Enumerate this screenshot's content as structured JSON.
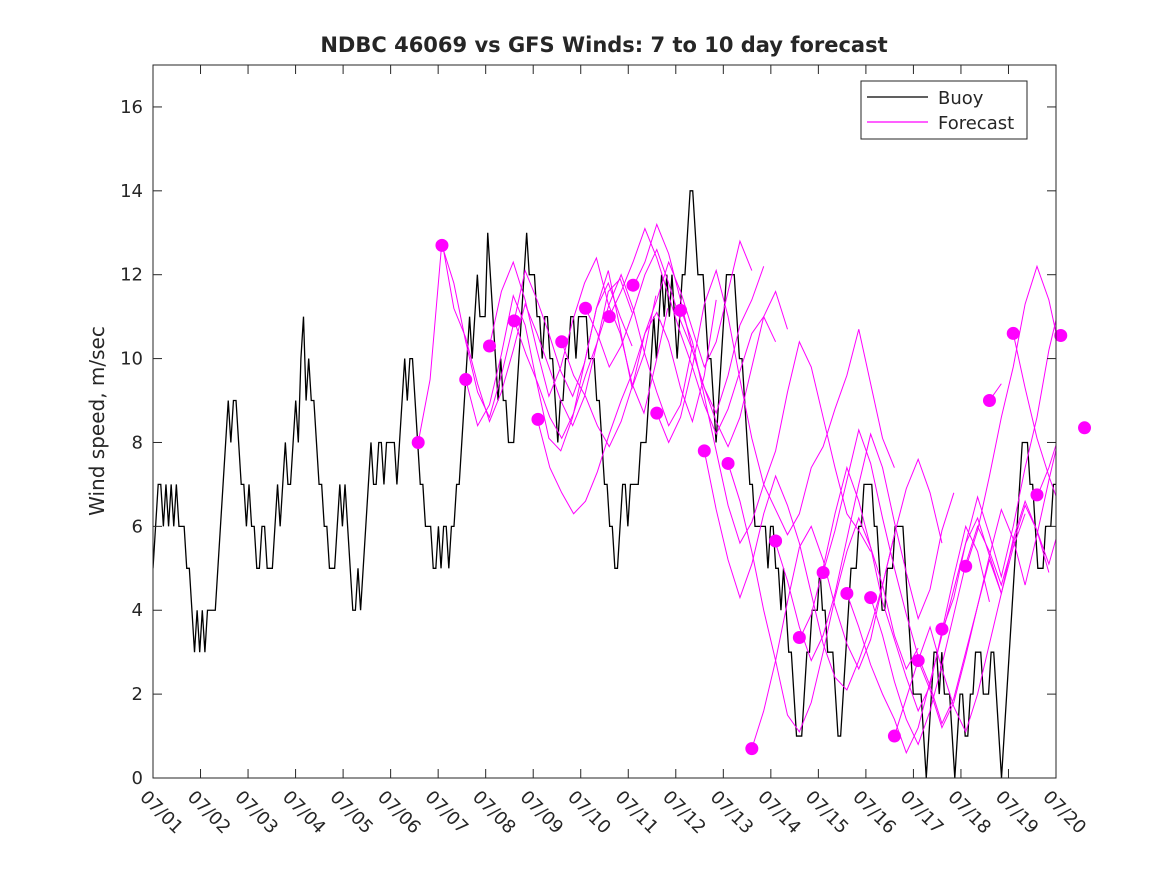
{
  "chart_data": {
    "type": "line",
    "title": "NDBC 46069 vs GFS Winds: 7 to 10 day forecast",
    "xlabel": "",
    "ylabel": "Wind speed, m/sec",
    "xlim": [
      0,
      19
    ],
    "ylim": [
      0,
      17
    ],
    "x_ticks": [
      0,
      1,
      2,
      3,
      4,
      5,
      6,
      7,
      8,
      9,
      10,
      11,
      12,
      13,
      14,
      15,
      16,
      17,
      18,
      19
    ],
    "x_tick_labels": [
      "07/01",
      "07/02",
      "07/03",
      "07/04",
      "07/05",
      "07/06",
      "07/07",
      "07/08",
      "07/09",
      "07/10",
      "07/11",
      "07/12",
      "07/13",
      "07/14",
      "07/15",
      "07/16",
      "07/17",
      "07/18",
      "07/19",
      "07/20"
    ],
    "y_ticks": [
      0,
      2,
      4,
      6,
      8,
      10,
      12,
      14,
      16
    ],
    "y_tick_labels": [
      "0",
      "2",
      "4",
      "6",
      "8",
      "10",
      "12",
      "14",
      "16"
    ],
    "grid": false,
    "legend": {
      "placement": "top-right",
      "entries": [
        {
          "label": "Buoy",
          "color": "#000000"
        },
        {
          "label": "Forecast",
          "color": "#ff00ff"
        }
      ]
    },
    "buoy_series": {
      "name": "Buoy",
      "color": "#000000",
      "values_hourly": [
        5,
        6,
        7,
        7,
        6,
        7,
        6,
        7,
        6,
        7,
        6,
        6,
        6,
        5,
        5,
        4,
        3,
        4,
        3,
        4,
        3,
        4,
        4,
        4,
        4,
        5,
        6,
        7,
        8,
        9,
        8,
        9,
        9,
        8,
        7,
        7,
        6,
        7,
        6,
        6,
        5,
        5,
        6,
        6,
        5,
        5,
        5,
        6,
        7,
        6,
        7,
        8,
        7,
        7,
        8,
        9,
        8,
        10,
        11,
        9,
        10,
        9,
        9,
        8,
        7,
        7,
        6,
        6,
        5,
        5,
        5,
        6,
        7,
        6,
        7,
        6,
        5,
        4,
        4,
        5,
        4,
        5,
        6,
        7,
        8,
        7,
        7,
        8,
        8,
        7,
        8,
        8,
        8,
        8,
        7,
        8,
        9,
        10,
        9,
        10,
        10,
        9,
        8,
        7,
        7,
        6,
        6,
        6,
        5,
        5,
        6,
        5,
        6,
        6,
        5,
        6,
        6,
        7,
        7,
        8,
        9,
        10,
        11,
        10,
        11,
        12,
        11,
        11,
        11,
        13,
        12,
        11,
        10,
        9,
        10,
        9,
        9,
        8,
        8,
        8,
        9,
        10,
        11,
        12,
        13,
        12,
        12,
        12,
        11,
        11,
        10,
        11,
        11,
        10,
        10,
        9,
        8,
        9,
        9,
        10,
        10,
        11,
        11,
        10,
        11,
        11,
        11,
        11,
        10,
        10,
        10,
        9,
        9,
        8,
        7,
        7,
        6,
        6,
        5,
        5,
        6,
        7,
        7,
        6,
        7,
        7,
        7,
        7,
        8,
        8,
        8,
        9,
        10,
        11,
        10,
        11,
        12,
        11,
        12,
        11,
        12,
        11,
        10,
        11,
        12,
        12,
        13,
        14,
        14,
        13,
        12,
        12,
        12,
        11,
        10,
        10,
        9,
        8,
        9,
        10,
        11,
        12,
        12,
        12,
        12,
        11,
        10,
        10,
        9,
        8,
        7,
        7,
        6,
        6,
        6,
        6,
        6,
        5,
        6,
        6,
        5,
        5,
        4,
        5,
        4,
        3,
        3,
        2,
        1,
        1,
        1,
        2,
        3,
        3,
        4,
        4,
        4,
        5,
        4,
        4,
        3,
        3,
        3,
        2,
        1,
        1,
        2,
        3,
        4,
        5,
        5,
        5,
        6,
        6,
        7,
        7,
        7,
        7,
        6,
        6,
        5,
        4,
        4,
        5,
        5,
        5,
        6,
        6,
        6,
        6,
        5,
        4,
        3,
        2,
        2,
        2,
        2,
        1,
        0,
        1,
        2,
        3,
        3,
        2,
        3,
        2,
        2,
        2,
        1,
        0,
        1,
        2,
        2,
        1,
        1,
        2,
        2,
        3,
        3,
        3,
        2,
        2,
        2,
        3,
        3,
        2,
        1,
        0,
        1,
        2,
        3,
        4,
        5,
        6,
        7,
        8,
        8,
        8,
        7,
        7,
        6,
        5,
        5,
        5,
        6,
        6,
        6,
        7,
        7
      ]
    },
    "forecast_runs": [
      {
        "start": 5.58,
        "step": 0.25,
        "values": [
          8.0,
          9.5,
          12.8,
          11.2,
          10.5,
          9.4,
          8.5,
          9.2,
          10.2,
          11.3,
          10.6,
          9.8,
          9.0,
          8.4,
          9.1,
          10.3,
          11.6,
          11.9,
          11.1
        ]
      },
      {
        "start": 6.08,
        "step": 0.25,
        "values": [
          12.7,
          11.8,
          10.4,
          9.2,
          8.6,
          9.6,
          10.8,
          12.1,
          11.4,
          10.6,
          9.7,
          9.1,
          9.9,
          11.2,
          11.8,
          11.0,
          10.3
        ]
      },
      {
        "start": 6.58,
        "step": 0.25,
        "values": [
          9.5,
          8.4,
          8.9,
          10.1,
          11.5,
          10.8,
          9.4,
          8.1,
          7.8,
          8.6,
          9.9,
          11.2,
          12.1,
          10.7,
          9.3,
          10.1,
          11.5
        ]
      },
      {
        "start": 7.08,
        "step": 0.25,
        "values": [
          10.3,
          11.6,
          12.3,
          11.4,
          10.2,
          9.1,
          9.8,
          10.9,
          11.8,
          12.4,
          11.3,
          10.6,
          9.4,
          8.7,
          9.9,
          11.2
        ]
      },
      {
        "start": 7.6,
        "step": 0.25,
        "values": [
          10.9,
          10.1,
          9.4,
          8.6,
          8.1,
          8.7,
          9.6,
          10.4,
          11.3,
          12.0,
          11.2,
          10.1,
          9.2,
          8.4,
          8.9,
          10.3
        ]
      },
      {
        "start": 8.1,
        "step": 0.25,
        "values": [
          8.5,
          7.4,
          6.8,
          6.3,
          6.6,
          7.3,
          8.2,
          9.0,
          9.7,
          10.6,
          11.1,
          10.4,
          9.3,
          8.5,
          9.6,
          11.4
        ]
      },
      {
        "start": 8.6,
        "step": 0.25,
        "values": [
          10.4,
          9.6,
          9.1,
          8.4,
          7.9,
          8.5,
          9.4,
          10.6,
          11.4,
          12.3,
          11.6,
          10.7,
          9.8,
          10.4,
          11.6,
          12.8,
          12.1
        ]
      },
      {
        "start": 9.1,
        "step": 0.25,
        "values": [
          11.2,
          10.6,
          9.8,
          10.3,
          11.1,
          12.0,
          12.6,
          11.8,
          10.9,
          10.2,
          9.3,
          8.7,
          9.6,
          10.8,
          11.4,
          12.2
        ]
      },
      {
        "start": 9.6,
        "step": 0.25,
        "values": [
          11.0,
          11.6,
          12.3,
          13.1,
          12.4,
          11.5,
          10.6,
          9.8,
          8.9,
          8.2,
          8.8,
          9.7,
          10.6,
          11.0,
          10.4
        ]
      },
      {
        "start": 10.1,
        "step": 0.25,
        "values": [
          11.7,
          12.3,
          13.2,
          12.5,
          11.4,
          10.2,
          9.3,
          8.5,
          7.9,
          8.6,
          9.8,
          11.0,
          11.6,
          10.7
        ]
      },
      {
        "start": 10.6,
        "step": 0.25,
        "values": [
          8.7,
          8.0,
          8.6,
          9.8,
          11.3,
          12.1,
          11.0,
          9.5,
          8.1,
          7.0,
          6.4,
          5.8,
          6.3,
          7.4,
          7.9,
          8.8,
          9.6,
          10.7,
          9.4,
          8.1,
          7.4
        ]
      },
      {
        "start": 11.1,
        "step": 0.25,
        "values": [
          11.2,
          10.4,
          9.1,
          7.8,
          6.5,
          5.6,
          6.1,
          7.0,
          7.8,
          9.2,
          10.4,
          9.8,
          8.6,
          7.4,
          6.3,
          5.9,
          5.4
        ]
      },
      {
        "start": 11.6,
        "step": 0.25,
        "values": [
          7.8,
          6.4,
          5.2,
          4.3,
          5.1,
          6.3,
          7.2,
          6.5,
          5.6,
          4.4,
          3.2,
          2.4,
          2.1,
          2.8,
          3.6,
          4.6,
          5.8
        ]
      },
      {
        "start": 12.1,
        "step": 0.25,
        "values": [
          7.5,
          6.6,
          5.4,
          4.0,
          2.8,
          1.5,
          1.1,
          1.8,
          3.0,
          4.3,
          5.4,
          6.2,
          5.5,
          4.6,
          3.4,
          2.6,
          3.1
        ]
      },
      {
        "start": 12.6,
        "step": 0.25,
        "values": [
          0.7,
          1.6,
          2.8,
          4.2,
          5.5,
          6.0,
          5.2,
          4.1,
          3.2,
          2.6,
          3.3,
          4.6,
          5.8,
          6.9,
          7.6,
          6.8,
          5.6
        ]
      },
      {
        "start": 13.1,
        "step": 0.25,
        "values": [
          5.6,
          4.7,
          3.6,
          2.8,
          3.4,
          4.4,
          5.7,
          7.0,
          8.2,
          7.4,
          6.1,
          4.9,
          3.8,
          4.5,
          5.9,
          6.8
        ]
      },
      {
        "start": 13.6,
        "step": 0.25,
        "values": [
          3.3,
          3.9,
          5.0,
          6.3,
          7.4,
          6.6,
          5.5,
          4.2,
          3.3,
          2.4,
          1.6,
          2.2,
          3.5,
          4.8,
          6.0,
          5.4,
          4.2
        ]
      },
      {
        "start": 14.1,
        "step": 0.25,
        "values": [
          4.9,
          5.9,
          7.1,
          8.3,
          7.5,
          6.2,
          5.0,
          3.9,
          2.9,
          2.2,
          1.3,
          1.9,
          3.0,
          4.1,
          5.2,
          4.4
        ]
      },
      {
        "start": 14.6,
        "step": 0.25,
        "values": [
          4.4,
          3.6,
          2.7,
          2.0,
          1.4,
          0.6,
          1.2,
          2.3,
          3.4,
          4.5,
          5.6,
          6.2,
          5.3,
          4.4,
          5.5,
          6.3
        ]
      },
      {
        "start": 15.1,
        "step": 0.25,
        "values": [
          4.3,
          3.4,
          2.3,
          1.4,
          0.8,
          1.6,
          2.7,
          3.9,
          5.1,
          6.0,
          5.4,
          4.6,
          5.6,
          6.5,
          5.9,
          4.9
        ]
      },
      {
        "start": 15.6,
        "step": 0.25,
        "values": [
          1.0,
          1.9,
          2.8,
          3.6,
          2.6,
          1.7,
          1.1,
          2.0,
          3.2,
          4.4,
          5.7,
          6.6,
          5.9,
          5.1,
          6.1,
          7.0
        ]
      },
      {
        "start": 16.1,
        "step": 0.25,
        "values": [
          2.8,
          2.1,
          1.2,
          1.8,
          2.9,
          4.1,
          5.3,
          6.4,
          5.7,
          4.6,
          5.8,
          7.1,
          8.3,
          7.6,
          6.7,
          7.9,
          9.2
        ]
      },
      {
        "start": 16.6,
        "step": 0.25,
        "values": [
          3.5,
          4.3,
          5.6,
          6.7,
          5.8,
          4.8,
          6.0,
          7.4,
          8.6,
          10.2,
          11.4,
          10.6,
          9.3,
          10.8,
          12.4,
          11.8
        ]
      },
      {
        "start": 17.1,
        "step": 0.25,
        "values": [
          5.0,
          5.9,
          7.2,
          8.6,
          9.8,
          11.3,
          12.2,
          11.4,
          10.1,
          9.2,
          10.6,
          12.7,
          13.4,
          12.3,
          11.1
        ]
      },
      {
        "start": 17.6,
        "step": 0.25,
        "values": [
          9.0,
          9.4
        ]
      },
      {
        "start": 18.1,
        "step": 0.25,
        "values": [
          10.6,
          9.3,
          8.1,
          7.2,
          6.4,
          5.9,
          5.5,
          5.8,
          6.3,
          6.0,
          5.7
        ]
      },
      {
        "start": 18.6,
        "step": 0.25,
        "values": [
          6.7,
          7.4,
          8.3,
          9.1,
          9.8,
          9.2,
          8.4,
          7.7,
          8.3,
          8.9
        ]
      },
      {
        "start": 19.1,
        "step": 0.25,
        "values": [
          10.5,
          11.4,
          12.3,
          11.6,
          10.7,
          9.9,
          10.6
        ]
      },
      {
        "start": 19.6,
        "step": 0.25,
        "values": [
          8.4,
          8.1,
          7.6,
          7.2
        ]
      }
    ],
    "forecast_markers": [
      {
        "x": 5.58,
        "y": 8.0
      },
      {
        "x": 6.08,
        "y": 12.7
      },
      {
        "x": 6.58,
        "y": 9.5
      },
      {
        "x": 7.08,
        "y": 10.3
      },
      {
        "x": 7.6,
        "y": 10.9
      },
      {
        "x": 8.1,
        "y": 8.55
      },
      {
        "x": 8.6,
        "y": 10.4
      },
      {
        "x": 9.1,
        "y": 11.2
      },
      {
        "x": 9.6,
        "y": 11.0
      },
      {
        "x": 10.1,
        "y": 11.75
      },
      {
        "x": 10.6,
        "y": 8.7
      },
      {
        "x": 11.1,
        "y": 11.15
      },
      {
        "x": 11.6,
        "y": 7.8
      },
      {
        "x": 12.1,
        "y": 7.5
      },
      {
        "x": 12.6,
        "y": 0.7
      },
      {
        "x": 13.1,
        "y": 5.65
      },
      {
        "x": 13.6,
        "y": 3.35
      },
      {
        "x": 14.1,
        "y": 4.9
      },
      {
        "x": 14.6,
        "y": 4.4
      },
      {
        "x": 15.1,
        "y": 4.3
      },
      {
        "x": 15.6,
        "y": 1.0
      },
      {
        "x": 16.1,
        "y": 2.8
      },
      {
        "x": 16.6,
        "y": 3.55
      },
      {
        "x": 17.1,
        "y": 5.05
      },
      {
        "x": 17.6,
        "y": 9.0
      },
      {
        "x": 18.1,
        "y": 10.6
      },
      {
        "x": 18.6,
        "y": 6.75
      },
      {
        "x": 19.1,
        "y": 10.55
      },
      {
        "x": 19.6,
        "y": 8.35
      }
    ]
  }
}
